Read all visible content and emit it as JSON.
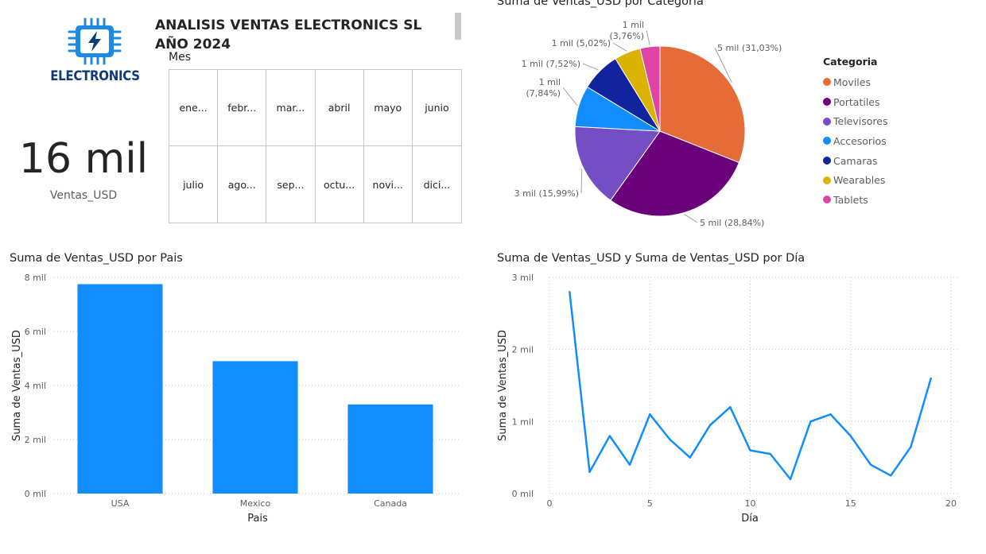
{
  "header": {
    "title_line1": "ANALISIS VENTAS ELECTRONICS SL",
    "title_line2": "AÑO 2024",
    "logo_text": "ELECTRONICS",
    "logo_icon": "lightning-chip-icon"
  },
  "kpi": {
    "value": "16 mil",
    "label": "Ventas_USD"
  },
  "slicer": {
    "title": "Mes",
    "items": [
      "ene...",
      "febr...",
      "mar...",
      "abril",
      "mayo",
      "junio",
      "julio",
      "ago...",
      "sep...",
      "octu...",
      "novi...",
      "dici..."
    ]
  },
  "colors": {
    "bar": "#118DFF",
    "line": "#118DFF",
    "Moviles": "#E66C37",
    "Portatiles": "#6B007B",
    "Televisores": "#744EC2",
    "Accesorios": "#118DFF",
    "Camaras": "#12239E",
    "Wearables": "#D9B300",
    "Tablets": "#E044A7"
  },
  "chart_data": [
    {
      "type": "pie",
      "title": "Suma de Ventas_USD por Categoria",
      "legend_title": "Categoria",
      "legend_position": "right",
      "categories": [
        "Moviles",
        "Portatiles",
        "Televisores",
        "Accesorios",
        "Camaras",
        "Wearables",
        "Tablets"
      ],
      "values": [
        31.03,
        28.84,
        15.99,
        7.84,
        7.52,
        5.02,
        3.76
      ],
      "data_labels": [
        "5 mil (31,03%)",
        "5 mil (28,84%)",
        "3 mil (15,99%)",
        "1 mil (7,84%)",
        "1 mil (7,52%)",
        "1 mil (5,02%)",
        "1 mil (3,76%)"
      ]
    },
    {
      "type": "bar",
      "title": "Suma de Ventas_USD por Pais",
      "xlabel": "Pais",
      "ylabel": "Suma de Ventas_USD",
      "categories": [
        "USA",
        "Mexico",
        "Canada"
      ],
      "values": [
        7750,
        4900,
        3300
      ],
      "ylim": [
        0,
        8000
      ],
      "yticks": [
        0,
        2000,
        4000,
        6000,
        8000
      ],
      "ytick_labels": [
        "0 mil",
        "2 mil",
        "4 mil",
        "6 mil",
        "8 mil"
      ],
      "grid": true
    },
    {
      "type": "line",
      "title": "Suma de Ventas_USD y Suma de Ventas_USD por Día",
      "xlabel": "Día",
      "ylabel": "Suma de Ventas_USD",
      "x": [
        1,
        2,
        3,
        4,
        5,
        6,
        7,
        8,
        9,
        10,
        11,
        12,
        13,
        14,
        15,
        16,
        17,
        18,
        19
      ],
      "y": [
        2800,
        300,
        800,
        400,
        1100,
        750,
        500,
        950,
        1200,
        600,
        550,
        200,
        1000,
        1100,
        800,
        400,
        250,
        650,
        1600
      ],
      "xlim": [
        0,
        20
      ],
      "ylim": [
        0,
        3000
      ],
      "xticks": [
        0,
        5,
        10,
        15,
        20
      ],
      "yticks": [
        0,
        1000,
        2000,
        3000
      ],
      "ytick_labels": [
        "0 mil",
        "1 mil",
        "2 mil",
        "3 mil"
      ],
      "grid": true
    }
  ]
}
